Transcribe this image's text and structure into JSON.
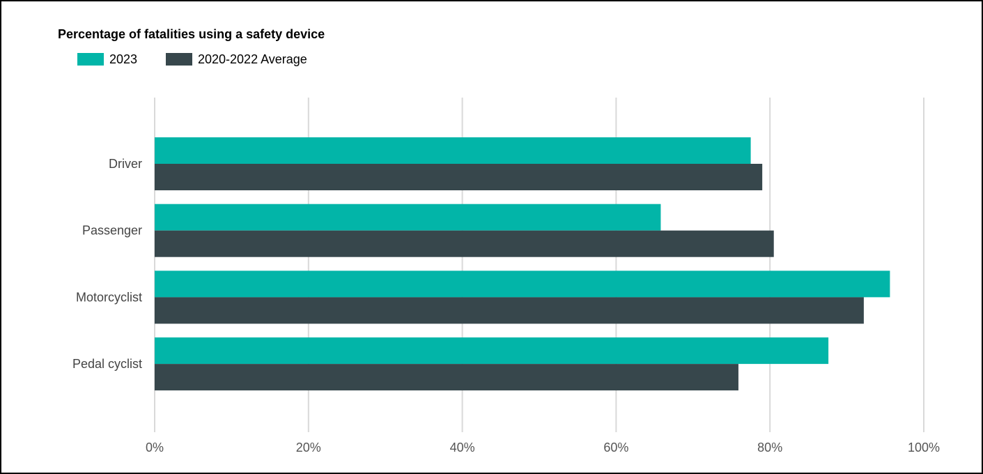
{
  "chart_data": {
    "type": "bar",
    "orientation": "horizontal",
    "title": "Percentage of fatalities using a safety device",
    "categories": [
      "Driver",
      "Passenger",
      "Motorcyclist",
      "Pedal cyclist"
    ],
    "series": [
      {
        "name": "2023",
        "color": "#02b5a8",
        "values": [
          77.5,
          65.8,
          95.6,
          87.6
        ]
      },
      {
        "name": "2020-2022 Average",
        "color": "#37474c",
        "values": [
          79.0,
          80.5,
          92.2,
          75.9
        ]
      }
    ],
    "x_ticks": [
      "0%",
      "20%",
      "40%",
      "60%",
      "80%",
      "100%"
    ],
    "xlim": [
      0,
      100
    ],
    "grid": true,
    "legend_position": "top-left"
  }
}
